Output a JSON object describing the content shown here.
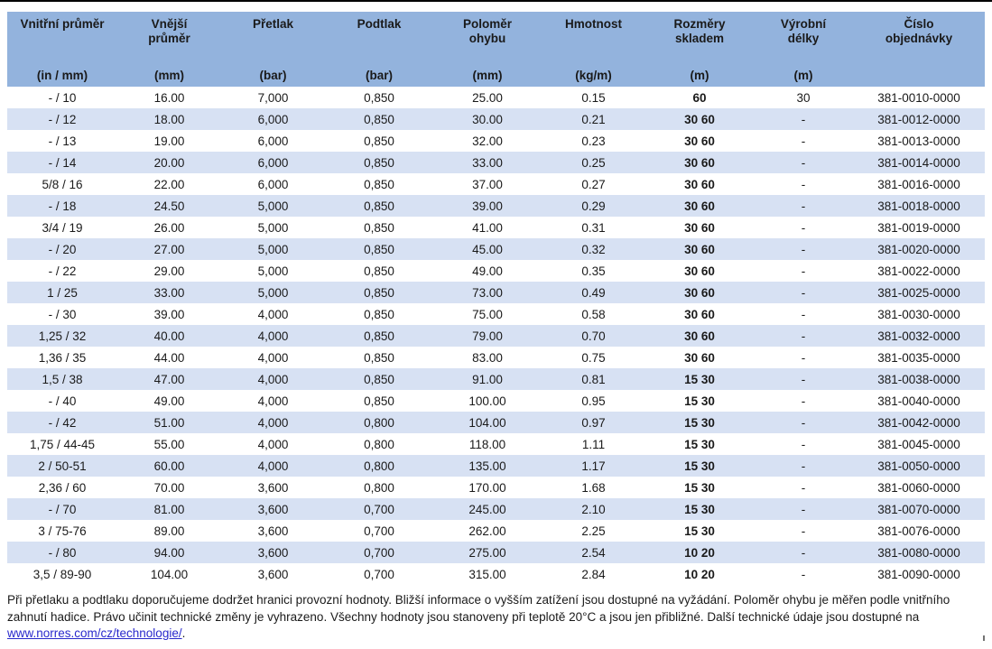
{
  "colors": {
    "header_bg": "#93B3DD",
    "row_alt_bg": "#D7E1F3",
    "link": "#2929CC",
    "text": "#1A1A1A"
  },
  "table": {
    "columns": [
      {
        "label": "Vnitřní průměr",
        "unit": "(in / mm)"
      },
      {
        "label": "Vnější průměr",
        "unit": "(mm)"
      },
      {
        "label": "Přetlak",
        "unit": "(bar)"
      },
      {
        "label": "Podtlak",
        "unit": "(bar)"
      },
      {
        "label": "Poloměr ohybu",
        "unit": "(mm)"
      },
      {
        "label": "Hmotnost",
        "unit": "(kg/m)"
      },
      {
        "label": "Rozměry skladem",
        "unit": "(m)"
      },
      {
        "label": "Výrobní délky",
        "unit": "(m)"
      },
      {
        "label": "Číslo objednávky",
        "unit": ""
      }
    ],
    "rows": [
      [
        "- / 10",
        "16.00",
        "7,000",
        "0,850",
        "25.00",
        "0.15",
        "60",
        "30",
        "381-0010-0000"
      ],
      [
        "- / 12",
        "18.00",
        "6,000",
        "0,850",
        "30.00",
        "0.21",
        "30 60",
        "-",
        "381-0012-0000"
      ],
      [
        "- / 13",
        "19.00",
        "6,000",
        "0,850",
        "32.00",
        "0.23",
        "30 60",
        "-",
        "381-0013-0000"
      ],
      [
        "- / 14",
        "20.00",
        "6,000",
        "0,850",
        "33.00",
        "0.25",
        "30 60",
        "-",
        "381-0014-0000"
      ],
      [
        "5/8 / 16",
        "22.00",
        "6,000",
        "0,850",
        "37.00",
        "0.27",
        "30 60",
        "-",
        "381-0016-0000"
      ],
      [
        "- / 18",
        "24.50",
        "5,000",
        "0,850",
        "39.00",
        "0.29",
        "30 60",
        "-",
        "381-0018-0000"
      ],
      [
        "3/4 / 19",
        "26.00",
        "5,000",
        "0,850",
        "41.00",
        "0.31",
        "30 60",
        "-",
        "381-0019-0000"
      ],
      [
        "- / 20",
        "27.00",
        "5,000",
        "0,850",
        "45.00",
        "0.32",
        "30 60",
        "-",
        "381-0020-0000"
      ],
      [
        "- / 22",
        "29.00",
        "5,000",
        "0,850",
        "49.00",
        "0.35",
        "30 60",
        "-",
        "381-0022-0000"
      ],
      [
        "1 / 25",
        "33.00",
        "5,000",
        "0,850",
        "73.00",
        "0.49",
        "30 60",
        "-",
        "381-0025-0000"
      ],
      [
        "- / 30",
        "39.00",
        "4,000",
        "0,850",
        "75.00",
        "0.58",
        "30 60",
        "-",
        "381-0030-0000"
      ],
      [
        "1,25 / 32",
        "40.00",
        "4,000",
        "0,850",
        "79.00",
        "0.70",
        "30 60",
        "-",
        "381-0032-0000"
      ],
      [
        "1,36 / 35",
        "44.00",
        "4,000",
        "0,850",
        "83.00",
        "0.75",
        "30 60",
        "-",
        "381-0035-0000"
      ],
      [
        "1,5 / 38",
        "47.00",
        "4,000",
        "0,850",
        "91.00",
        "0.81",
        "15 30",
        "-",
        "381-0038-0000"
      ],
      [
        "- / 40",
        "49.00",
        "4,000",
        "0,850",
        "100.00",
        "0.95",
        "15 30",
        "-",
        "381-0040-0000"
      ],
      [
        "- / 42",
        "51.00",
        "4,000",
        "0,800",
        "104.00",
        "0.97",
        "15 30",
        "-",
        "381-0042-0000"
      ],
      [
        "1,75 / 44-45",
        "55.00",
        "4,000",
        "0,800",
        "118.00",
        "1.11",
        "15 30",
        "-",
        "381-0045-0000"
      ],
      [
        "2 / 50-51",
        "60.00",
        "4,000",
        "0,800",
        "135.00",
        "1.17",
        "15 30",
        "-",
        "381-0050-0000"
      ],
      [
        "2,36 / 60",
        "70.00",
        "3,600",
        "0,800",
        "170.00",
        "1.68",
        "15 30",
        "-",
        "381-0060-0000"
      ],
      [
        "- / 70",
        "81.00",
        "3,600",
        "0,700",
        "245.00",
        "2.10",
        "15 30",
        "-",
        "381-0070-0000"
      ],
      [
        "3 / 75-76",
        "89.00",
        "3,600",
        "0,700",
        "262.00",
        "2.25",
        "15 30",
        "-",
        "381-0076-0000"
      ],
      [
        "- / 80",
        "94.00",
        "3,600",
        "0,700",
        "275.00",
        "2.54",
        "10 20",
        "-",
        "381-0080-0000"
      ],
      [
        "3,5 / 89-90",
        "104.00",
        "3,600",
        "0,700",
        "315.00",
        "2.84",
        "10 20",
        "-",
        "381-0090-0000"
      ]
    ]
  },
  "footer": {
    "text_before_link": "Při přetlaku a podtlaku doporučujeme dodržet hranici provozní hodnoty. Bližší informace o vyšším zatížení jsou dostupné na vyžádání. Poloměr ohybu je měřen podle vnitřního zahnutí hadice. Právo učinit technické změny je vyhrazeno. Všechny hodnoty jsou stanoveny při teplotě 20°C a jsou jen přibližné. Další technické údaje jsou dostupné na ",
    "link": "www.norres.com/cz/technologie/",
    "text_after_link": "."
  }
}
